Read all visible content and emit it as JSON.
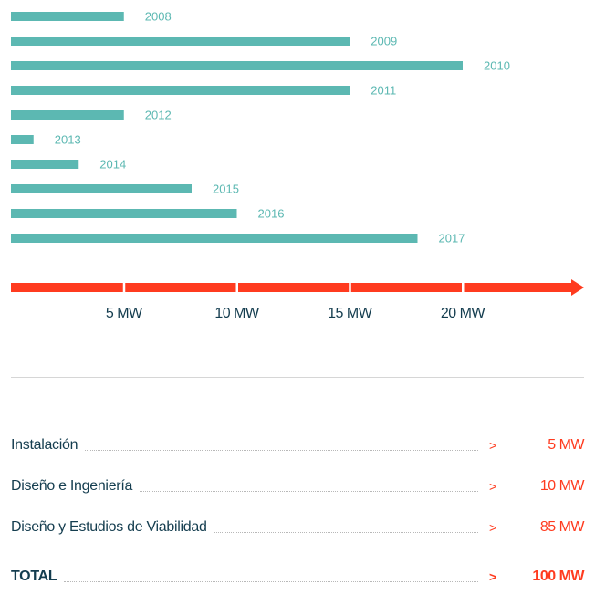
{
  "chart_data": {
    "type": "bar",
    "orientation": "horizontal",
    "categories": [
      "2008",
      "2009",
      "2010",
      "2011",
      "2012",
      "2013",
      "2014",
      "2015",
      "2016",
      "2017"
    ],
    "values": [
      5,
      15,
      20,
      15,
      5,
      1,
      3,
      8,
      10,
      18
    ],
    "unit": "MW",
    "xlim": [
      0,
      25
    ],
    "xticks": [
      5,
      10,
      15,
      20
    ],
    "xtick_labels": [
      "5 MW",
      "10 MW",
      "15 MW",
      "20 MW"
    ],
    "bar_color": "#5cb8b2",
    "axis_color": "#ff3b1f",
    "grid": false,
    "title": "",
    "xlabel": "",
    "ylabel": ""
  },
  "summary": {
    "rows": [
      {
        "label": "Instalación",
        "arrow": ">",
        "value": "5 MW"
      },
      {
        "label": "Diseño e Ingeniería",
        "arrow": ">",
        "value": "10 MW"
      },
      {
        "label": "Diseño y Estudios de Viabilidad",
        "arrow": ">",
        "value": "85 MW"
      }
    ],
    "total": {
      "label": "TOTAL",
      "arrow": ">",
      "value": "100 MW"
    }
  },
  "colors": {
    "accent": "#ff3b1f",
    "text": "#143d4f",
    "bar": "#5cb8b2"
  }
}
